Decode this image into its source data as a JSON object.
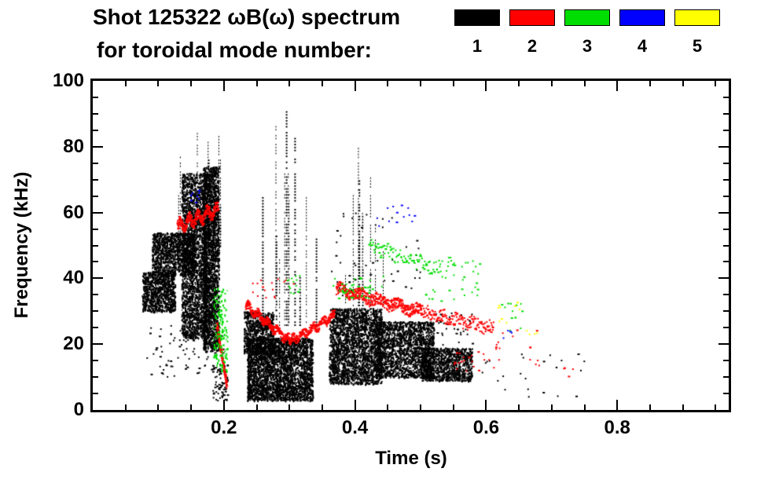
{
  "title": {
    "line1": "Shot 125322 ωB(ω) spectrum",
    "line2": "for toroidal mode number:"
  },
  "legend": {
    "entries": [
      {
        "label": "1",
        "color": "#000000"
      },
      {
        "label": "2",
        "color": "#ff0000"
      },
      {
        "label": "3",
        "color": "#00dd00"
      },
      {
        "label": "4",
        "color": "#0000ff"
      },
      {
        "label": "5",
        "color": "#ffff00"
      }
    ]
  },
  "chart_data": {
    "type": "scatter",
    "title": "Shot 125322 ωB(ω) spectrum for toroidal mode number: 1 2 3 4 5",
    "xlabel": "Time (s)",
    "ylabel": "Frequency (kHz)",
    "xlim": [
      0,
      0.97
    ],
    "ylim": [
      0,
      100
    ],
    "xticks": [
      0.2,
      0.4,
      0.6,
      0.8
    ],
    "xtick_labels": [
      "0.2",
      "0.4",
      "0.6",
      "0.8"
    ],
    "yticks": [
      0,
      20,
      40,
      60,
      80,
      100
    ],
    "ytick_labels": [
      "0",
      "20",
      "40",
      "60",
      "80",
      "100"
    ],
    "xminor": 0.05,
    "yminor": 5,
    "grid": false,
    "legend_position": "top-right",
    "series": [
      {
        "name": "1",
        "color": "#000000",
        "clusters": [
          {
            "shape": "blob",
            "t": [
              0.075,
              0.125
            ],
            "f": [
              30,
              42
            ],
            "n": 900
          },
          {
            "shape": "blob",
            "t": [
              0.09,
              0.155
            ],
            "f": [
              41,
              54
            ],
            "n": 1200
          },
          {
            "shape": "blob",
            "t": [
              0.135,
              0.178
            ],
            "f": [
              22,
              72
            ],
            "n": 3000
          },
          {
            "shape": "streaks",
            "t": [
              0.128,
              0.196
            ],
            "f": [
              62,
              87
            ],
            "fbase": 50,
            "k": 10
          },
          {
            "shape": "blob",
            "t": [
              0.168,
              0.192
            ],
            "f": [
              18,
              74
            ],
            "n": 2200
          },
          {
            "shape": "dots",
            "t": [
              0.182,
              0.205
            ],
            "f": [
              3,
              14
            ],
            "n": 70
          },
          {
            "shape": "dots",
            "t": [
              0.08,
              0.2
            ],
            "f": [
              10,
              26
            ],
            "n": 90
          },
          {
            "shape": "blob",
            "t": [
              0.23,
              0.275
            ],
            "f": [
              17,
              30
            ],
            "n": 800
          },
          {
            "shape": "blob",
            "t": [
              0.235,
              0.335
            ],
            "f": [
              3,
              22
            ],
            "n": 3000
          },
          {
            "shape": "streaks",
            "t": [
              0.245,
              0.345
            ],
            "f": [
              32,
              95
            ],
            "fbase": 26,
            "k": 13
          },
          {
            "shape": "blob",
            "t": [
              0.36,
              0.44
            ],
            "f": [
              8,
              31
            ],
            "n": 2600
          },
          {
            "shape": "streaks",
            "t": [
              0.383,
              0.45
            ],
            "f": [
              38,
              86
            ],
            "fbase": 32,
            "k": 11
          },
          {
            "shape": "dots",
            "t": [
              0.36,
              0.5
            ],
            "f": [
              33,
              60
            ],
            "n": 50
          },
          {
            "shape": "blob",
            "t": [
              0.43,
              0.52
            ],
            "f": [
              10,
              27
            ],
            "n": 1800
          },
          {
            "shape": "blob",
            "t": [
              0.5,
              0.578
            ],
            "f": [
              9,
              19
            ],
            "n": 1100
          },
          {
            "shape": "dots",
            "t": [
              0.52,
              0.58
            ],
            "f": [
              20,
              30
            ],
            "n": 30
          },
          {
            "shape": "dots",
            "t": [
              0.58,
              0.75
            ],
            "f": [
              3,
              18
            ],
            "n": 24
          }
        ]
      },
      {
        "name": "2",
        "color": "#ff0000",
        "clusters": [
          {
            "shape": "line",
            "t": [
              0.128,
              0.19
            ],
            "f": [
              56,
              61
            ],
            "jf": 1.5,
            "wig": 1.5,
            "n": 300
          },
          {
            "shape": "line",
            "t": [
              0.188,
              0.203
            ],
            "f": [
              26,
              8
            ],
            "jf": 1.2,
            "wig": 0,
            "n": 130
          },
          {
            "shape": "line",
            "t": [
              0.232,
              0.3
            ],
            "f": [
              32,
              21
            ],
            "jf": 1.3,
            "wig": 0.8,
            "n": 280
          },
          {
            "shape": "line",
            "t": [
              0.3,
              0.368
            ],
            "f": [
              21,
              29
            ],
            "jf": 1.3,
            "wig": 0.8,
            "n": 240
          },
          {
            "shape": "dots",
            "t": [
              0.24,
              0.31
            ],
            "f": [
              33,
              40
            ],
            "n": 16
          },
          {
            "shape": "line",
            "t": [
              0.37,
              0.5
            ],
            "f": [
              37,
              30
            ],
            "jf": 1.8,
            "wig": 0.8,
            "n": 420
          },
          {
            "shape": "line",
            "t": [
              0.5,
              0.61
            ],
            "f": [
              30,
              25
            ],
            "jf": 2.0,
            "wig": 0.6,
            "n": 160
          },
          {
            "shape": "dots",
            "t": [
              0.55,
              0.61
            ],
            "f": [
              12,
              18
            ],
            "n": 20
          },
          {
            "shape": "dots",
            "t": [
              0.6,
              0.68
            ],
            "f": [
              13,
              26
            ],
            "n": 18
          },
          {
            "shape": "dots",
            "t": [
              0.71,
              0.74
            ],
            "f": [
              10,
              14
            ],
            "n": 4
          }
        ]
      },
      {
        "name": "3",
        "color": "#00dd00",
        "clusters": [
          {
            "shape": "blob",
            "t": [
              0.183,
              0.205
            ],
            "f": [
              12,
              38
            ],
            "n": 170
          },
          {
            "shape": "dots",
            "t": [
              0.295,
              0.315
            ],
            "f": [
              35,
              41
            ],
            "n": 14
          },
          {
            "shape": "dots",
            "t": [
              0.365,
              0.45
            ],
            "f": [
              34,
              41
            ],
            "n": 45
          },
          {
            "shape": "line",
            "t": [
              0.42,
              0.53
            ],
            "f": [
              50,
              43
            ],
            "jf": 2.2,
            "wig": 0.5,
            "n": 100
          },
          {
            "shape": "dots",
            "t": [
              0.5,
              0.59
            ],
            "f": [
              33,
              47
            ],
            "n": 40
          },
          {
            "shape": "dots",
            "t": [
              0.62,
              0.665
            ],
            "f": [
              24,
              34
            ],
            "n": 12
          }
        ]
      },
      {
        "name": "4",
        "color": "#0000ff",
        "clusters": [
          {
            "shape": "dots",
            "t": [
              0.148,
              0.163
            ],
            "f": [
              63,
              68
            ],
            "n": 10
          },
          {
            "shape": "dots",
            "t": [
              0.43,
              0.49
            ],
            "f": [
              56,
              64
            ],
            "n": 13
          },
          {
            "shape": "dots",
            "t": [
              0.625,
              0.642
            ],
            "f": [
              22,
              26
            ],
            "n": 4
          }
        ]
      },
      {
        "name": "5",
        "color": "#ffff00",
        "clusters": [
          {
            "shape": "dots",
            "t": [
              0.615,
              0.65
            ],
            "f": [
              26,
              33
            ],
            "n": 9
          },
          {
            "shape": "dots",
            "t": [
              0.66,
              0.678
            ],
            "f": [
              23,
              26
            ],
            "n": 4
          }
        ]
      }
    ]
  }
}
